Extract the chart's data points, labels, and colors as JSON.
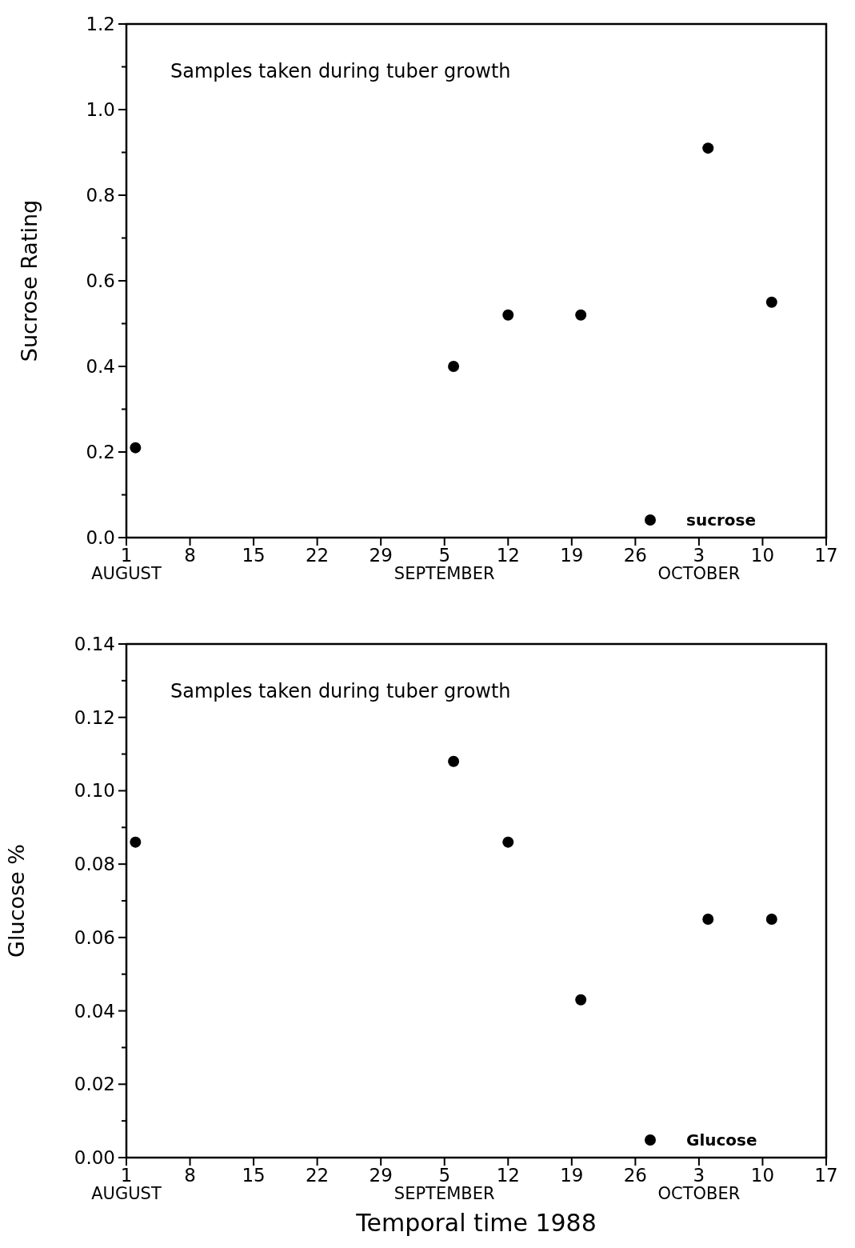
{
  "chart_data": [
    {
      "type": "scatter",
      "ylabel": "Sucrose Rating",
      "annotations": [
        "Samples taken during tuber growth"
      ],
      "xlim": [
        "1988-08-01",
        "1988-10-17"
      ],
      "xticks": [
        {
          "value": "1988-08-01",
          "label": "1\nAUGUST"
        },
        {
          "value": "1988-08-08",
          "label": "8"
        },
        {
          "value": "1988-08-15",
          "label": "15"
        },
        {
          "value": "1988-08-22",
          "label": "22"
        },
        {
          "value": "1988-08-29",
          "label": "29"
        },
        {
          "value": "1988-09-05",
          "label": "5\nSEPTEMBER"
        },
        {
          "value": "1988-09-12",
          "label": "12"
        },
        {
          "value": "1988-09-19",
          "label": "19"
        },
        {
          "value": "1988-09-26",
          "label": "26"
        },
        {
          "value": "1988-10-03",
          "label": "3\nOCTOBER"
        },
        {
          "value": "1988-10-10",
          "label": "10"
        },
        {
          "value": "1988-10-17",
          "label": "17"
        }
      ],
      "ylim": [
        0,
        1.2
      ],
      "yticks": [
        {
          "value": 0,
          "label": "0.0"
        },
        {
          "value": 0.1,
          "label": null
        },
        {
          "value": 0.2,
          "label": "0.2"
        },
        {
          "value": 0.3,
          "label": null
        },
        {
          "value": 0.4,
          "label": "0.4"
        },
        {
          "value": 0.5,
          "label": null
        },
        {
          "value": 0.6,
          "label": "0.6"
        },
        {
          "value": 0.7,
          "label": null
        },
        {
          "value": 0.8,
          "label": "0.8"
        },
        {
          "value": 0.9,
          "label": null
        },
        {
          "value": 1,
          "label": "1.0"
        },
        {
          "value": 1.1,
          "label": null
        },
        {
          "value": 1.2,
          "label": "1.2"
        }
      ],
      "x": [
        "1988-08-02",
        "1988-09-06",
        "1988-09-12",
        "1988-09-20",
        "1988-10-04",
        "1988-10-11"
      ],
      "series": [
        {
          "name": "sucrose",
          "color": "#000000",
          "values": [
            0.21,
            0.4,
            0.52,
            0.52,
            0.91,
            0.55
          ]
        }
      ],
      "marker": "circle",
      "legend": "bottom right",
      "tick_labels": "y"
    },
    {
      "type": "scatter",
      "ylabel": "Glucose %",
      "xlabel": "Temporal time  1988",
      "annotations": [
        "Samples taken during tuber growth"
      ],
      "xlim": [
        "1988-08-01",
        "1988-10-17"
      ],
      "xticks": [
        {
          "value": "1988-08-01",
          "label": "1\nAUGUST"
        },
        {
          "value": "1988-08-08",
          "label": "8"
        },
        {
          "value": "1988-08-15",
          "label": "15"
        },
        {
          "value": "1988-08-22",
          "label": "22"
        },
        {
          "value": "1988-08-29",
          "label": "29"
        },
        {
          "value": "1988-09-05",
          "label": "5\nSEPTEMBER"
        },
        {
          "value": "1988-09-12",
          "label": "12"
        },
        {
          "value": "1988-09-19",
          "label": "19"
        },
        {
          "value": "1988-09-26",
          "label": "26"
        },
        {
          "value": "1988-10-03",
          "label": "3\nOCTOBER"
        },
        {
          "value": "1988-10-10",
          "label": "10"
        },
        {
          "value": "1988-10-17",
          "label": "17"
        }
      ],
      "ylim": [
        0,
        0.14
      ],
      "yticks": [
        {
          "value": 0,
          "label": "0.00"
        },
        {
          "value": 0.01,
          "label": null
        },
        {
          "value": 0.02,
          "label": "0.02"
        },
        {
          "value": 0.03,
          "label": null
        },
        {
          "value": 0.04,
          "label": "0.04"
        },
        {
          "value": 0.05,
          "label": null
        },
        {
          "value": 0.06,
          "label": "0.06"
        },
        {
          "value": 0.07,
          "label": null
        },
        {
          "value": 0.08,
          "label": "0.08"
        },
        {
          "value": 0.09,
          "label": null
        },
        {
          "value": 0.1,
          "label": "0.10"
        },
        {
          "value": 0.11,
          "label": null
        },
        {
          "value": 0.12,
          "label": "0.12"
        },
        {
          "value": 0.13,
          "label": null
        },
        {
          "value": 0.14,
          "label": "0.14"
        }
      ],
      "x": [
        "1988-08-02",
        "1988-09-06",
        "1988-09-12",
        "1988-09-20",
        "1988-10-04",
        "1988-10-11"
      ],
      "series": [
        {
          "name": "Glucose",
          "color": "#000000",
          "values": [
            0.086,
            0.108,
            0.086,
            0.043,
            0.065,
            0.065
          ]
        }
      ],
      "marker": "circle",
      "legend": "bottom right"
    }
  ]
}
